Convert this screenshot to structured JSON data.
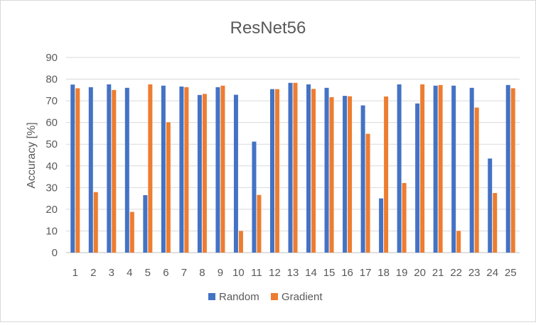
{
  "chart_data": {
    "type": "bar",
    "title": "ResNet56",
    "xlabel": "",
    "ylabel": "Accuracy [%]",
    "ylim": [
      0,
      90
    ],
    "yticks": [
      0,
      10,
      20,
      30,
      40,
      50,
      60,
      70,
      80,
      90
    ],
    "grid": true,
    "legend": "bottom",
    "categories": [
      "1",
      "2",
      "3",
      "4",
      "5",
      "6",
      "7",
      "8",
      "9",
      "10",
      "11",
      "12",
      "13",
      "14",
      "15",
      "16",
      "17",
      "18",
      "19",
      "20",
      "21",
      "22",
      "23",
      "24",
      "25"
    ],
    "series": [
      {
        "name": "Random",
        "color": "#4472c4",
        "values": [
          77.5,
          76.3,
          77.6,
          76.0,
          26.5,
          77.0,
          76.6,
          72.7,
          76.3,
          72.8,
          51.2,
          75.4,
          78.3,
          77.6,
          76.0,
          72.3,
          67.9,
          25.0,
          77.6,
          68.8,
          77.0,
          77.0,
          76.0,
          43.4,
          77.3
        ]
      },
      {
        "name": "Gradient",
        "color": "#ed7d31",
        "values": [
          75.8,
          27.9,
          75.0,
          18.8,
          77.6,
          60.1,
          76.3,
          73.2,
          77.0,
          10.0,
          26.6,
          75.4,
          78.3,
          75.5,
          71.7,
          72.1,
          54.8,
          72.0,
          32.1,
          77.6,
          77.3,
          10.0,
          66.9,
          27.5,
          75.8
        ]
      }
    ]
  }
}
